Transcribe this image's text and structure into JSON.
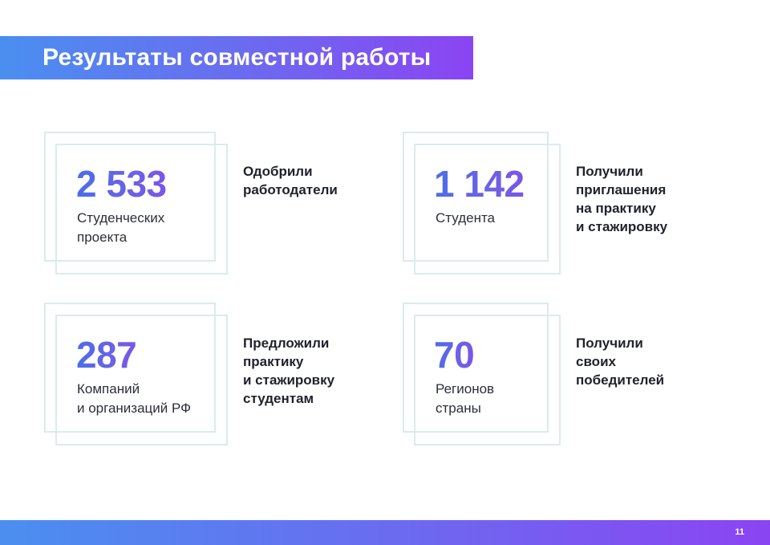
{
  "header": {
    "title": "Результаты совместной работы"
  },
  "stats": [
    {
      "number": "2 533",
      "caption": "Студенческих\nпроекта",
      "description": "Одобрили\nработодатели"
    },
    {
      "number": "1 142",
      "caption": "Студента",
      "description": "Получили\nприглашения\nна практику\nи стажировку"
    },
    {
      "number": "287",
      "caption": "Компаний\nи организаций РФ",
      "description": "Предложили\nпрактику\nи стажировку\nстудентам"
    },
    {
      "number": "70",
      "caption": "Регионов\nстраны",
      "description": "Получили\nсвоих\nпобедителей"
    }
  ],
  "footer": {
    "page_number": "11"
  },
  "colors": {
    "gradient_start": "#4a8ff0",
    "gradient_end": "#8b44f2",
    "frame_border": "#d9ecec"
  }
}
